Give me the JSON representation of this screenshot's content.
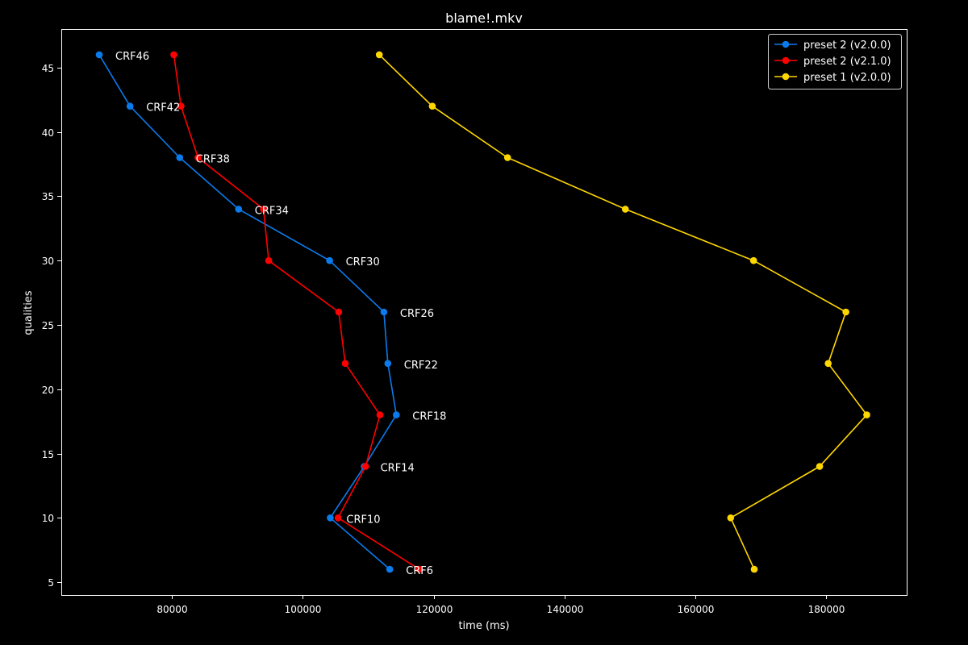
{
  "chart_data": {
    "type": "line",
    "title": "blame!.mkv",
    "xlabel": "time (ms)",
    "ylabel": "qualities",
    "xlim": [
      63100,
      192300
    ],
    "ylim": [
      4,
      48
    ],
    "xticks": [
      80000,
      100000,
      120000,
      140000,
      160000,
      180000
    ],
    "yticks": [
      5,
      10,
      15,
      20,
      25,
      30,
      35,
      40,
      45
    ],
    "grid": false,
    "legend_position": "top-right",
    "background": "#000000",
    "foreground": "#ffffff",
    "series": [
      {
        "name": "preset 2 (v2.0.0)",
        "color": "#0a7bec",
        "points": [
          {
            "x": 68900,
            "y": 46
          },
          {
            "x": 73600,
            "y": 42
          },
          {
            "x": 81200,
            "y": 38
          },
          {
            "x": 90200,
            "y": 34
          },
          {
            "x": 104100,
            "y": 30
          },
          {
            "x": 112400,
            "y": 26
          },
          {
            "x": 113000,
            "y": 22
          },
          {
            "x": 114300,
            "y": 18
          },
          {
            "x": 109400,
            "y": 14
          },
          {
            "x": 104200,
            "y": 10
          },
          {
            "x": 113300,
            "y": 6
          }
        ]
      },
      {
        "name": "preset 2 (v2.1.0)",
        "color": "#ff0000",
        "points": [
          {
            "x": 80300,
            "y": 46
          },
          {
            "x": 81400,
            "y": 42
          },
          {
            "x": 84000,
            "y": 38
          },
          {
            "x": 94000,
            "y": 34
          },
          {
            "x": 94800,
            "y": 30
          },
          {
            "x": 105500,
            "y": 26
          },
          {
            "x": 106500,
            "y": 22
          },
          {
            "x": 111800,
            "y": 18
          },
          {
            "x": 109600,
            "y": 14
          },
          {
            "x": 105400,
            "y": 10
          },
          {
            "x": 117800,
            "y": 6
          }
        ]
      },
      {
        "name": "preset 1 (v2.0.0)",
        "color": "#ffd700",
        "points": [
          {
            "x": 111700,
            "y": 46
          },
          {
            "x": 119800,
            "y": 42
          },
          {
            "x": 131300,
            "y": 38
          },
          {
            "x": 149300,
            "y": 34
          },
          {
            "x": 168900,
            "y": 30
          },
          {
            "x": 183000,
            "y": 26
          },
          {
            "x": 180300,
            "y": 22
          },
          {
            "x": 186200,
            "y": 18
          },
          {
            "x": 179000,
            "y": 14
          },
          {
            "x": 165400,
            "y": 10
          },
          {
            "x": 169000,
            "y": 6
          }
        ]
      }
    ],
    "annotations": [
      {
        "text": "CRF46",
        "series": 0,
        "point": 0
      },
      {
        "text": "CRF42",
        "series": 0,
        "point": 1
      },
      {
        "text": "CRF38",
        "series": 0,
        "point": 2
      },
      {
        "text": "CRF34",
        "series": 0,
        "point": 3
      },
      {
        "text": "CRF30",
        "series": 0,
        "point": 4
      },
      {
        "text": "CRF26",
        "series": 0,
        "point": 5
      },
      {
        "text": "CRF22",
        "series": 0,
        "point": 6
      },
      {
        "text": "CRF18",
        "series": 0,
        "point": 7
      },
      {
        "text": "CRF14",
        "series": 0,
        "point": 8
      },
      {
        "text": "CRF10",
        "series": 0,
        "point": 9
      },
      {
        "text": "CRF6",
        "series": 0,
        "point": 10
      }
    ]
  }
}
